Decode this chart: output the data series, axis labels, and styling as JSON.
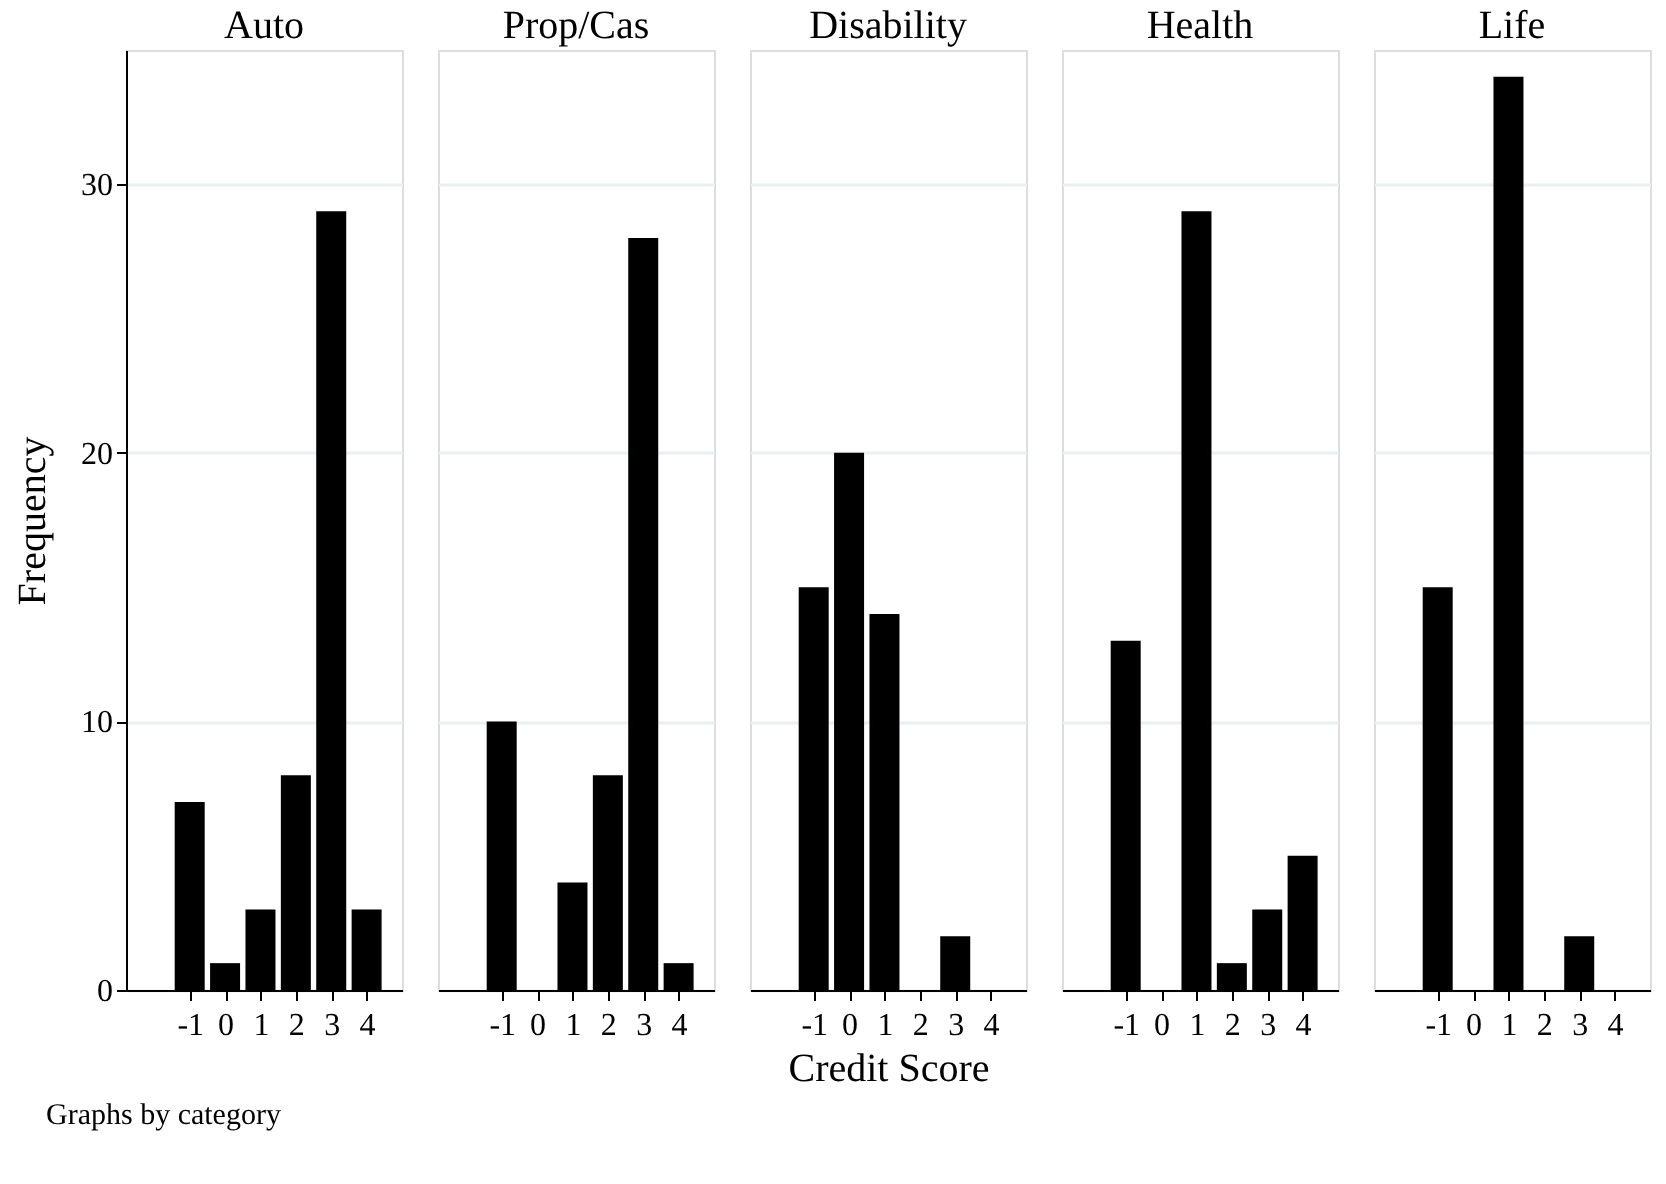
{
  "chart_data": [
    {
      "type": "bar",
      "title": "Auto",
      "ylabel": "Frequency",
      "x": [
        -1,
        0,
        1,
        2,
        3,
        4
      ],
      "values": [
        7,
        1,
        3,
        8,
        29,
        3
      ],
      "color": "#000000",
      "xlim": [
        -2.8,
        5
      ],
      "xticks": [
        -1,
        0,
        1,
        2,
        3,
        4
      ],
      "ylim": [
        0,
        35
      ],
      "yticks": [
        0,
        10,
        20,
        30
      ],
      "grid": "y",
      "annotations": [
        "Graphs by category"
      ]
    },
    {
      "type": "bar",
      "title": "Prop/Cas",
      "x": [
        -1,
        0,
        1,
        2,
        3,
        4
      ],
      "values": [
        10,
        0,
        4,
        8,
        28,
        1
      ],
      "color": "#000000",
      "xlim": [
        -2.8,
        5
      ],
      "xticks": [
        -1,
        0,
        1,
        2,
        3,
        4
      ],
      "ylim": [
        0,
        35
      ],
      "yticks": [
        0,
        10,
        20,
        30
      ],
      "grid": "y",
      "tick_labels": "x"
    },
    {
      "type": "bar",
      "title": "Disability",
      "xlabel": "Credit Score",
      "x": [
        -1,
        0,
        1,
        2,
        3,
        4
      ],
      "values": [
        15,
        20,
        14,
        0,
        2,
        0
      ],
      "color": "#000000",
      "xlim": [
        -2.8,
        5
      ],
      "xticks": [
        -1,
        0,
        1,
        2,
        3,
        4
      ],
      "ylim": [
        0,
        35
      ],
      "yticks": [
        0,
        10,
        20,
        30
      ],
      "grid": "y",
      "tick_labels": "x"
    },
    {
      "type": "bar",
      "title": "Health",
      "x": [
        -1,
        0,
        1,
        2,
        3,
        4
      ],
      "values": [
        13,
        0,
        29,
        1,
        3,
        5
      ],
      "color": "#000000",
      "xlim": [
        -2.8,
        5
      ],
      "xticks": [
        -1,
        0,
        1,
        2,
        3,
        4
      ],
      "ylim": [
        0,
        35
      ],
      "yticks": [
        0,
        10,
        20,
        30
      ],
      "grid": "y",
      "tick_labels": "x"
    },
    {
      "type": "bar",
      "title": "Life",
      "x": [
        -1,
        0,
        1,
        2,
        3,
        4
      ],
      "values": [
        15,
        0,
        34,
        0,
        2,
        0
      ],
      "color": "#000000",
      "xlim": [
        -2.8,
        5
      ],
      "xticks": [
        -1,
        0,
        1,
        2,
        3,
        4
      ],
      "ylim": [
        0,
        35
      ],
      "yticks": [
        0,
        10,
        20,
        30
      ],
      "grid": "y",
      "tick_labels": "x"
    }
  ]
}
